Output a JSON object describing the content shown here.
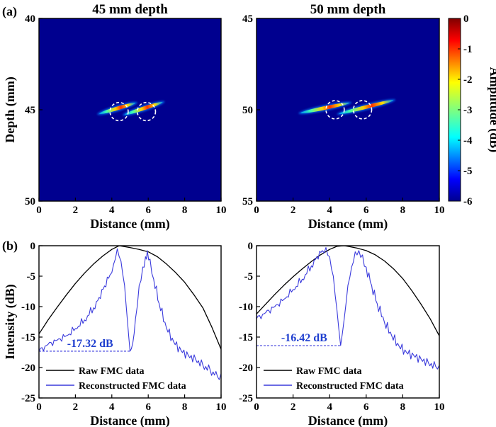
{
  "panel_labels": [
    "(a)",
    "(b)"
  ],
  "chart_data": [
    {
      "type": "heatmap",
      "title": "45 mm depth",
      "xlabel": "Distance (mm)",
      "ylabel": "Depth (mm)",
      "xlim": [
        0,
        10
      ],
      "ylim": [
        40,
        50
      ],
      "y_inverted": true,
      "xticks": [
        0,
        2,
        4,
        6,
        8,
        10
      ],
      "yticks": [
        40,
        45,
        50
      ],
      "background_color": "#00008f",
      "streaks": [
        {
          "x1": 3.2,
          "y1": 45.25,
          "x2": 5.4,
          "y2": 44.6
        },
        {
          "x1": 4.6,
          "y1": 45.3,
          "x2": 6.9,
          "y2": 44.55
        }
      ],
      "circles": [
        {
          "cx": 4.4,
          "cy": 45.1,
          "r": 0.5
        },
        {
          "cx": 5.9,
          "cy": 45.1,
          "r": 0.5
        }
      ]
    },
    {
      "type": "heatmap",
      "title": "50 mm depth",
      "xlabel": "Distance (mm)",
      "ylabel": "",
      "xlim": [
        0,
        10
      ],
      "ylim": [
        45,
        55
      ],
      "y_inverted": true,
      "xticks": [
        0,
        2,
        4,
        6,
        8,
        10
      ],
      "yticks": [
        45,
        50,
        55
      ],
      "background_color": "#00008f",
      "streaks": [
        {
          "x1": 2.3,
          "y1": 50.2,
          "x2": 5.2,
          "y2": 49.6
        },
        {
          "x1": 4.4,
          "y1": 50.25,
          "x2": 7.6,
          "y2": 49.45
        }
      ],
      "circles": [
        {
          "cx": 4.3,
          "cy": 50.0,
          "r": 0.5
        },
        {
          "cx": 5.8,
          "cy": 50.0,
          "r": 0.5
        }
      ],
      "colorbar": {
        "label": "Amplitude (dB)",
        "range": [
          -6,
          0
        ],
        "ticks": [
          0,
          -1,
          -2,
          -3,
          -4,
          -5,
          -6
        ]
      }
    },
    {
      "type": "line",
      "title": "",
      "xlabel": "Distance (mm)",
      "ylabel": "Intensity (dB)",
      "xlim": [
        0,
        10
      ],
      "ylim": [
        -25,
        0
      ],
      "xticks": [
        0,
        2,
        4,
        6,
        8,
        10
      ],
      "yticks": [
        0,
        -5,
        -10,
        -15,
        -20,
        -25
      ],
      "series": [
        {
          "name": "Raw FMC data",
          "color": "#000000",
          "x": [
            0,
            0.5,
            1,
            1.5,
            2,
            2.5,
            3,
            3.5,
            4,
            4.4,
            5,
            5.5,
            6,
            6.5,
            7,
            7.5,
            8,
            8.5,
            9,
            9.5,
            10
          ],
          "y": [
            -14.5,
            -12.2,
            -10.1,
            -8.1,
            -6.2,
            -4.5,
            -3.0,
            -1.7,
            -0.6,
            0,
            -0.3,
            -0.6,
            -1.0,
            -1.8,
            -3.0,
            -4.4,
            -6.0,
            -8.0,
            -10.2,
            -13.4,
            -17.0
          ]
        },
        {
          "name": "Reconstructed  FMC data",
          "color": "#3a3adc",
          "x": [
            0,
            0.5,
            1,
            1.5,
            2,
            2.5,
            3,
            3.3,
            3.6,
            3.9,
            4.1,
            4.3,
            4.5,
            4.7,
            4.85,
            5.0,
            5.15,
            5.3,
            5.5,
            5.7,
            5.85,
            5.95,
            6.1,
            6.3,
            6.6,
            7.0,
            7.4,
            7.8,
            8.2,
            8.6,
            9.0,
            9.4,
            9.8,
            10
          ],
          "y": [
            -17.3,
            -16.2,
            -15.5,
            -14.8,
            -13.6,
            -12.2,
            -10.2,
            -8.5,
            -6.6,
            -4.8,
            -3.0,
            -0.5,
            -2.5,
            -6.5,
            -12.0,
            -17.3,
            -16.0,
            -12.0,
            -6.5,
            -3.5,
            -1.8,
            -0.8,
            -2.2,
            -5.5,
            -9.5,
            -13.5,
            -15.8,
            -17.2,
            -18.0,
            -18.6,
            -19.6,
            -20.4,
            -21.5,
            -21.0
          ]
        }
      ],
      "annotation": {
        "text": "-17.32 dB",
        "x_start": 0,
        "x_end": 5.0,
        "y": -17.32
      },
      "legend_placement": "bottom-left"
    },
    {
      "type": "line",
      "title": "",
      "xlabel": "Distance (mm)",
      "ylabel": "",
      "xlim": [
        0,
        10
      ],
      "ylim": [
        -25,
        0
      ],
      "xticks": [
        0,
        2,
        4,
        6,
        8,
        10
      ],
      "yticks": [
        0,
        -5,
        -10,
        -15,
        -20,
        -25
      ],
      "series": [
        {
          "name": "Raw FMC data",
          "color": "#000000",
          "x": [
            0,
            0.5,
            1,
            1.5,
            2,
            2.5,
            3,
            3.5,
            4,
            4.4,
            4.8,
            5,
            5.5,
            6,
            6.5,
            7,
            7.5,
            8,
            8.5,
            9,
            9.5,
            10
          ],
          "y": [
            -11.2,
            -9.6,
            -8.0,
            -6.5,
            -5.1,
            -3.8,
            -2.6,
            -1.5,
            -0.6,
            -0.1,
            0,
            -0.1,
            -0.4,
            -0.8,
            -1.5,
            -2.5,
            -3.8,
            -5.4,
            -7.4,
            -9.6,
            -12.0,
            -14.8
          ]
        },
        {
          "name": "Reconstructed  FMC data",
          "color": "#3a3adc",
          "x": [
            0,
            0.5,
            1,
            1.5,
            2,
            2.5,
            3,
            3.3,
            3.6,
            3.8,
            4.0,
            4.2,
            4.4,
            4.6,
            4.8,
            5.0,
            5.2,
            5.4,
            5.6,
            5.8,
            6.0,
            6.3,
            6.6,
            7.0,
            7.4,
            7.8,
            8.2,
            8.6,
            9.0,
            9.4,
            9.8,
            10
          ],
          "y": [
            -12.0,
            -11.0,
            -10.0,
            -8.8,
            -7.2,
            -5.5,
            -3.3,
            -1.8,
            -0.8,
            -0.3,
            -1.8,
            -5.0,
            -10.5,
            -16.4,
            -12.0,
            -6.5,
            -3.5,
            -1.0,
            -0.8,
            -1.5,
            -3.5,
            -6.5,
            -9.5,
            -12.6,
            -14.8,
            -16.5,
            -17.5,
            -18.0,
            -18.6,
            -19.2,
            -19.8,
            -19.6
          ]
        }
      ],
      "annotation": {
        "text": "-16.42 dB",
        "x_start": 0,
        "x_end": 4.6,
        "y": -16.42
      },
      "legend_placement": "bottom-left"
    }
  ]
}
